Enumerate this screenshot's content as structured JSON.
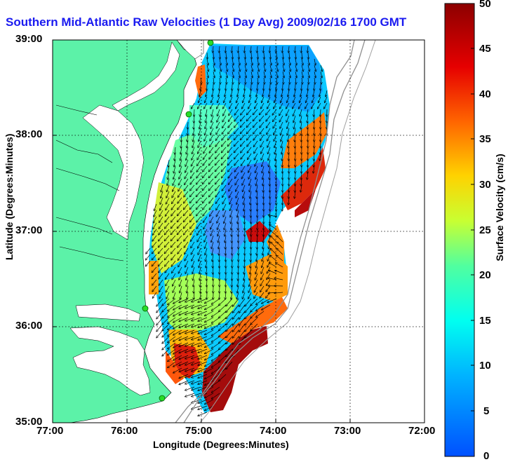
{
  "title": "Southern Mid-Atlantic Raw Velocities (1 Day Avg) 2009/02/16 1700 GMT",
  "xlabel": "Longitude (Degrees:Minutes)",
  "ylabel": "Latitude (Degrees:Minutes)",
  "xticks": [
    "77:00",
    "76:00",
    "75:00",
    "74:00",
    "73:00",
    "72:00"
  ],
  "yticks": [
    "39:00",
    "38:00",
    "37:00",
    "36:00",
    "35:00"
  ],
  "colorbar": {
    "label": "Surface Velocity (cm/s)",
    "ticks": [
      "50",
      "45",
      "40",
      "35",
      "30",
      "25",
      "20",
      "15",
      "10",
      "5",
      "0"
    ],
    "range": [
      0,
      50
    ],
    "colors": [
      "#0050ff",
      "#00b4ff",
      "#00fff0",
      "#50ffa0",
      "#c8ff32",
      "#ffd200",
      "#ff6400",
      "#e60000",
      "#8c0000"
    ]
  },
  "map": {
    "land_color": "#5cf2a8",
    "water_color": "#ffffff",
    "lon_range": [
      "77:00",
      "72:00"
    ],
    "lat_range": [
      "35:00",
      "39:00"
    ],
    "stations": 4
  }
}
